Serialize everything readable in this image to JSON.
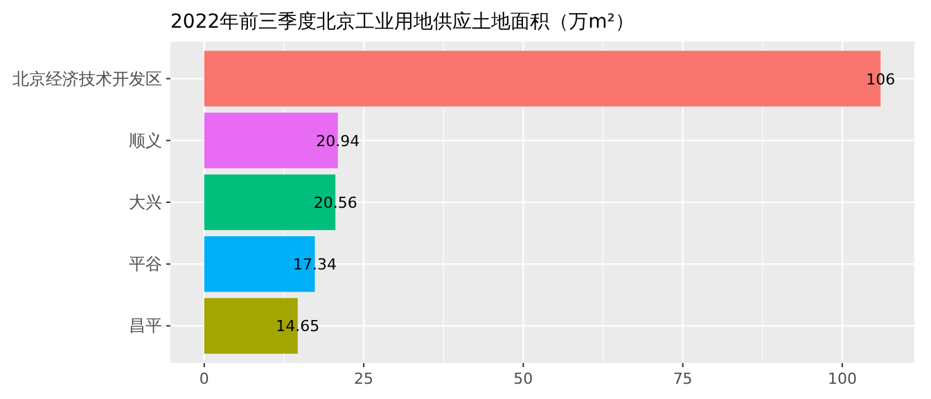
{
  "chart_data": {
    "type": "bar",
    "orientation": "horizontal",
    "title": "2022年前三季度北京工业用地供应土地面积（万m²）",
    "categories": [
      "北京经济技术开发区",
      "顺义",
      "大兴",
      "平谷",
      "昌平"
    ],
    "values": [
      106,
      20.94,
      20.56,
      17.34,
      14.65
    ],
    "colors": [
      "#f8766d",
      "#e76bf3",
      "#00bf7d",
      "#00b0f6",
      "#a3a500"
    ],
    "xlim": [
      -5.3,
      111.3
    ],
    "xticks": [
      0,
      25,
      50,
      75,
      100
    ],
    "grid": true,
    "data_labels": true
  }
}
